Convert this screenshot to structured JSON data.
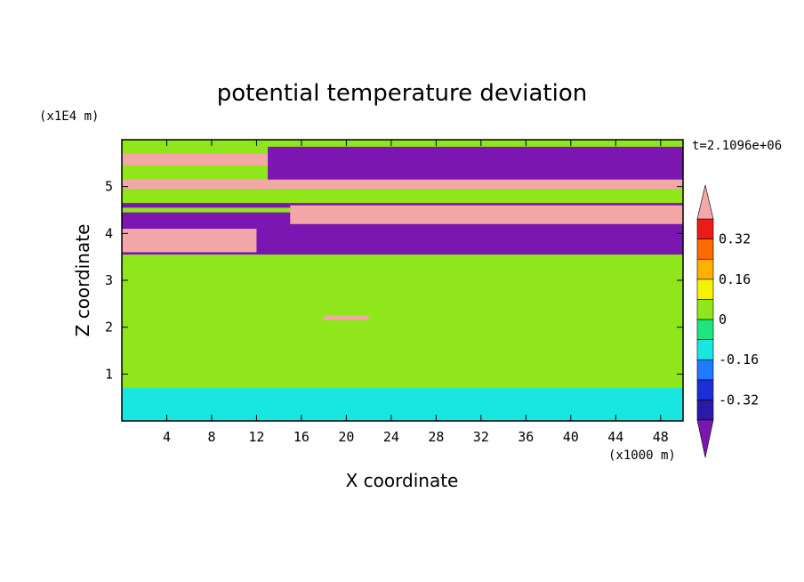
{
  "chart_data": {
    "type": "heatmap",
    "title": "potential temperature deviation",
    "xlabel": "X coordinate",
    "ylabel": "Z coordinate",
    "x_unit_note": "(x1000 m)",
    "y_unit_note": "(x1E4 m)",
    "time_label": "t=2.1096e+06",
    "x_ticks": [
      4,
      8,
      12,
      16,
      20,
      24,
      28,
      32,
      36,
      40,
      44,
      48
    ],
    "y_ticks": [
      1,
      2,
      3,
      4,
      5
    ],
    "xlim": [
      0,
      50
    ],
    "ylim": [
      0,
      6
    ],
    "colorbar": {
      "levels": [
        -0.4,
        -0.32,
        -0.24,
        -0.16,
        -0.08,
        0,
        0.08,
        0.16,
        0.24,
        0.32,
        0.4
      ],
      "labels": [
        "0.32",
        "0.16",
        "0",
        "-0.16",
        "-0.32"
      ],
      "label_values": [
        0.32,
        0.16,
        0,
        -0.16,
        -0.32
      ],
      "colors": [
        "#7b16b0",
        "#2a1aa8",
        "#1c2fd6",
        "#1f7bff",
        "#17e7e0",
        "#1fe57f",
        "#8fe61b",
        "#f4f200",
        "#ffb000",
        "#ff6a00",
        "#ee1a1a",
        "#f4a7a7"
      ]
    },
    "fields": [
      {
        "x": [
          0,
          50
        ],
        "z": [
          3.45,
          6.0
        ],
        "value": 0.0
      },
      {
        "x": [
          0,
          50
        ],
        "z": [
          0.7,
          3.45
        ],
        "value": 0.04
      },
      {
        "x": [
          0,
          15
        ],
        "z": [
          5.45,
          5.7
        ],
        "value": 0.45
      },
      {
        "x": [
          40,
          50
        ],
        "z": [
          5.4,
          5.7
        ],
        "value": 0.45
      },
      {
        "x": [
          13,
          50
        ],
        "z": [
          5.1,
          5.85
        ],
        "value": -0.45
      },
      {
        "x": [
          0,
          50
        ],
        "z": [
          4.95,
          5.15
        ],
        "value": 0.45
      },
      {
        "x": [
          0,
          50
        ],
        "z": [
          4.55,
          4.65
        ],
        "value": -0.45
      },
      {
        "x": [
          0,
          50
        ],
        "z": [
          3.55,
          4.45
        ],
        "value": -0.45
      },
      {
        "x": [
          15,
          50
        ],
        "z": [
          4.2,
          4.6
        ],
        "value": 0.45
      },
      {
        "x": [
          0,
          12
        ],
        "z": [
          3.6,
          4.1
        ],
        "value": 0.45
      },
      {
        "x": [
          18,
          22
        ],
        "z": [
          2.15,
          2.25
        ],
        "value": 0.45
      },
      {
        "x": [
          0,
          50
        ],
        "z": [
          0.0,
          0.7
        ],
        "value": -0.1
      }
    ]
  }
}
